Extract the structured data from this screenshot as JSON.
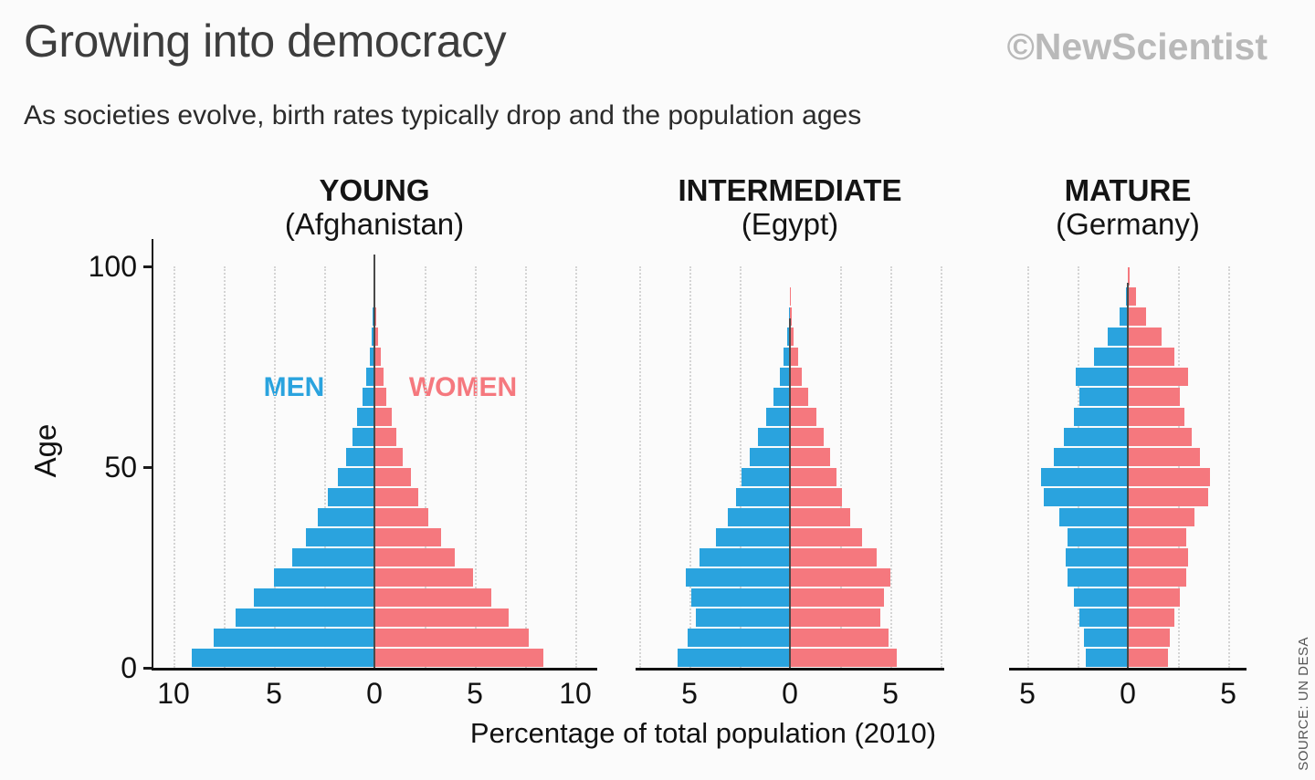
{
  "header": {
    "title": "Growing into democracy",
    "logo": "©NewScientist",
    "subtitle": "As societies evolve, birth rates typically drop and the population ages"
  },
  "legend": {
    "men": "MEN",
    "women": "WOMEN"
  },
  "colors": {
    "men": "#2aa3de",
    "women": "#f5787e",
    "axis": "#111111",
    "grid": "#d4d4d4"
  },
  "axes": {
    "y_label": "Age",
    "y_ticks": [
      0,
      50,
      100
    ],
    "ylim": [
      0,
      100
    ],
    "x_label": "Percentage of total population (2010)"
  },
  "source": "SOURCE: UN DESA",
  "chart_data": [
    {
      "type": "bar",
      "subtype": "population-pyramid",
      "title": "YOUNG",
      "subtitle": "(Afghanistan)",
      "xlim": [
        -11,
        11
      ],
      "x_ticks": [
        -10,
        -5,
        0,
        5,
        10
      ],
      "age_band_years": 5,
      "ages": [
        0,
        5,
        10,
        15,
        20,
        25,
        30,
        35,
        40,
        45,
        50,
        55,
        60,
        65,
        70,
        75,
        80,
        85,
        90,
        95
      ],
      "men": [
        9.1,
        8.0,
        6.9,
        6.0,
        5.0,
        4.1,
        3.4,
        2.8,
        2.3,
        1.8,
        1.4,
        1.1,
        0.85,
        0.6,
        0.4,
        0.25,
        0.15,
        0.07,
        0.02,
        0.01
      ],
      "women": [
        8.4,
        7.7,
        6.7,
        5.8,
        4.9,
        4.0,
        3.3,
        2.7,
        2.2,
        1.8,
        1.4,
        1.1,
        0.85,
        0.6,
        0.45,
        0.3,
        0.17,
        0.08,
        0.03,
        0.01
      ],
      "center_line_top_age": 103
    },
    {
      "type": "bar",
      "subtype": "population-pyramid",
      "title": "INTERMEDIATE",
      "subtitle": "(Egypt)",
      "xlim": [
        -7.5,
        7.5
      ],
      "x_ticks": [
        -5,
        0,
        5
      ],
      "age_band_years": 5,
      "ages": [
        0,
        5,
        10,
        15,
        20,
        25,
        30,
        35,
        40,
        45,
        50,
        55,
        60,
        65,
        70,
        75,
        80,
        85,
        90,
        95
      ],
      "men": [
        5.6,
        5.1,
        4.7,
        4.9,
        5.2,
        4.5,
        3.7,
        3.1,
        2.7,
        2.4,
        2.0,
        1.6,
        1.2,
        0.8,
        0.5,
        0.3,
        0.13,
        0.05,
        0.01,
        0
      ],
      "women": [
        5.3,
        4.9,
        4.5,
        4.7,
        5.0,
        4.3,
        3.6,
        3.0,
        2.6,
        2.3,
        2.0,
        1.7,
        1.3,
        0.9,
        0.6,
        0.4,
        0.2,
        0.08,
        0.02,
        0
      ],
      "center_line_top_age": 87
    },
    {
      "type": "bar",
      "subtype": "population-pyramid",
      "title": "MATURE",
      "subtitle": "(Germany)",
      "xlim": [
        -5.7,
        5.7
      ],
      "x_ticks": [
        -5,
        0,
        5
      ],
      "age_band_years": 5,
      "ages": [
        0,
        5,
        10,
        15,
        20,
        25,
        30,
        35,
        40,
        45,
        50,
        55,
        60,
        65,
        70,
        75,
        80,
        85,
        90,
        95
      ],
      "men": [
        2.1,
        2.2,
        2.4,
        2.7,
        3.0,
        3.1,
        3.0,
        3.4,
        4.2,
        4.3,
        3.7,
        3.2,
        2.7,
        2.4,
        2.6,
        1.7,
        1.0,
        0.4,
        0.1,
        0.02
      ],
      "women": [
        2.0,
        2.1,
        2.3,
        2.6,
        2.9,
        3.0,
        2.9,
        3.3,
        4.0,
        4.1,
        3.6,
        3.2,
        2.8,
        2.6,
        3.0,
        2.3,
        1.7,
        0.9,
        0.4,
        0.1
      ],
      "center_line_top_age": 96
    }
  ]
}
